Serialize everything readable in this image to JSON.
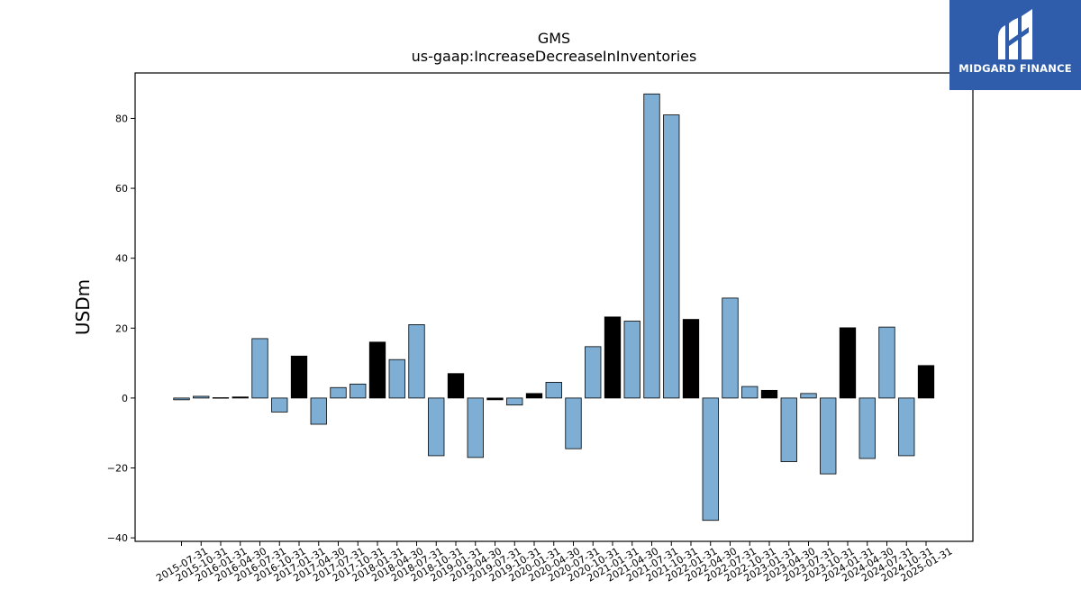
{
  "chart_data": {
    "type": "bar",
    "title": "GMS",
    "subtitle": "us-gaap:IncreaseDecreaseInInventories",
    "xlabel": "",
    "ylabel": "USDm",
    "ylim": [
      -41,
      93
    ],
    "yticks": [
      -40,
      -20,
      0,
      20,
      40,
      60,
      80
    ],
    "grid": false,
    "categories": [
      "2015-07-31",
      "2015-10-31",
      "2016-01-31",
      "2016-04-30",
      "2016-07-31",
      "2016-10-31",
      "2017-01-31",
      "2017-04-30",
      "2017-07-31",
      "2017-10-31",
      "2018-01-31",
      "2018-04-30",
      "2018-07-31",
      "2018-10-31",
      "2019-01-31",
      "2019-04-30",
      "2019-07-31",
      "2019-10-31",
      "2020-01-31",
      "2020-04-30",
      "2020-07-31",
      "2020-10-31",
      "2021-01-31",
      "2021-04-30",
      "2021-07-31",
      "2021-10-31",
      "2022-01-31",
      "2022-04-30",
      "2022-07-31",
      "2022-10-31",
      "2023-01-31",
      "2023-04-30",
      "2023-07-31",
      "2023-10-31",
      "2024-01-31",
      "2024-04-30",
      "2024-07-31",
      "2024-10-31",
      "2025-01-31"
    ],
    "values": [
      -0.5,
      0.5,
      0.1,
      0.3,
      17,
      -4,
      12,
      -7.5,
      3,
      4,
      16,
      11,
      21,
      -16.5,
      7,
      -17,
      -0.5,
      -2,
      1.3,
      4.5,
      -14.5,
      14.7,
      23.2,
      22,
      87,
      81,
      22.5,
      -35,
      28.6,
      3.3,
      2.2,
      -18.2,
      1.3,
      -21.7,
      20.1,
      -17.3,
      20.3,
      -16.5,
      9.3
    ],
    "highlighted": [
      false,
      false,
      false,
      true,
      false,
      false,
      true,
      false,
      false,
      false,
      true,
      false,
      false,
      false,
      true,
      false,
      true,
      false,
      true,
      false,
      false,
      false,
      true,
      false,
      false,
      false,
      true,
      false,
      false,
      false,
      true,
      false,
      false,
      false,
      true,
      false,
      false,
      false,
      true
    ],
    "colors": {
      "normal": "#7eaed3",
      "highlight": "#000000",
      "edge": "#000000"
    }
  },
  "logo": {
    "text": "MIDGARD FINANCE",
    "background": "#2f5dab"
  }
}
